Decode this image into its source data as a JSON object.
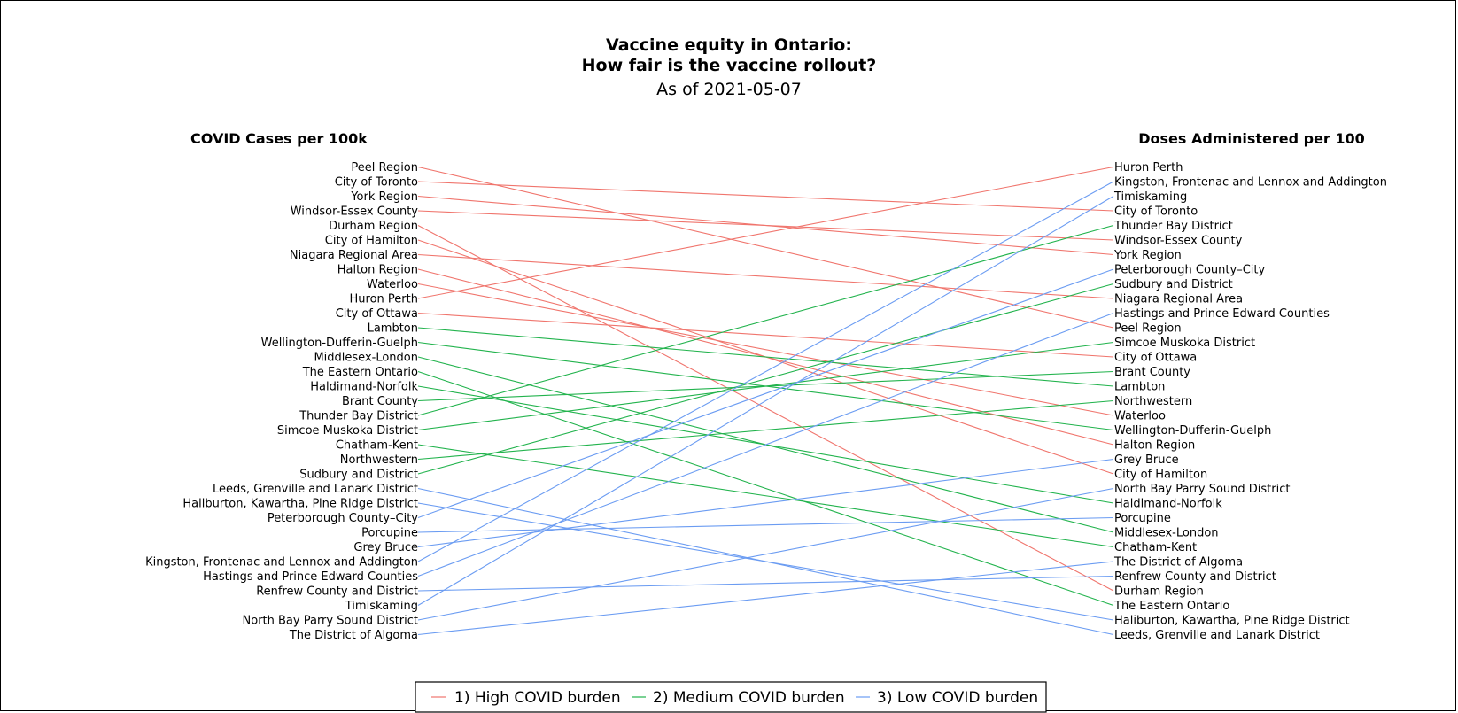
{
  "chart_data": {
    "type": "slopegraph",
    "title_line1": "Vaccine equity in Ontario:",
    "title_line2": "How fair is the vaccine rollout?",
    "subtitle": "As of 2021-05-07",
    "left_header": "COVID Cases per 100k",
    "right_header": "Doses Administered per 100",
    "colors": {
      "High": "#f0756d",
      "Medium": "#22b34d",
      "Low": "#6b9cf2"
    },
    "legend": [
      {
        "key": "High",
        "label": "1) High COVID burden"
      },
      {
        "key": "Medium",
        "label": "2) Medium COVID burden"
      },
      {
        "key": "Low",
        "label": "3) Low COVID burden"
      }
    ],
    "left_order": [
      "Peel Region",
      "City of Toronto",
      "York Region",
      "Windsor-Essex County",
      "Durham Region",
      "City of Hamilton",
      "Niagara Regional Area",
      "Halton Region",
      "Waterloo",
      "Huron Perth",
      "City of Ottawa",
      "Lambton",
      "Wellington-Dufferin-Guelph",
      "Middlesex-London",
      "The Eastern Ontario",
      "Haldimand-Norfolk",
      "Brant County",
      "Thunder Bay District",
      "Simcoe Muskoka District",
      "Chatham-Kent",
      "Northwestern",
      "Sudbury and District",
      "Leeds, Grenville and Lanark District",
      "Haliburton, Kawartha, Pine Ridge District",
      "Peterborough County–City",
      "Porcupine",
      "Grey Bruce",
      "Kingston, Frontenac and Lennox and Addington",
      "Hastings and Prince Edward Counties",
      "Renfrew County and District",
      "Timiskaming",
      "North Bay Parry Sound District",
      "The District of Algoma"
    ],
    "right_order": [
      "Huron Perth",
      "Kingston, Frontenac and Lennox and Addington",
      "Timiskaming",
      "City of Toronto",
      "Thunder Bay District",
      "Windsor-Essex County",
      "York Region",
      "Peterborough County–City",
      "Sudbury and District",
      "Niagara Regional Area",
      "Hastings and Prince Edward Counties",
      "Peel Region",
      "Simcoe Muskoka District",
      "City of Ottawa",
      "Brant County",
      "Lambton",
      "Northwestern",
      "Waterloo",
      "Wellington-Dufferin-Guelph",
      "Halton Region",
      "Grey Bruce",
      "City of Hamilton",
      "North Bay Parry Sound District",
      "Haldimand-Norfolk",
      "Porcupine",
      "Middlesex-London",
      "Chatham-Kent",
      "The District of Algoma",
      "Renfrew County and District",
      "Durham Region",
      "The Eastern Ontario",
      "Haliburton, Kawartha, Pine Ridge District",
      "Leeds, Grenville and Lanark District"
    ],
    "burden": {
      "Peel Region": "High",
      "City of Toronto": "High",
      "York Region": "High",
      "Windsor-Essex County": "High",
      "Durham Region": "High",
      "City of Hamilton": "High",
      "Niagara Regional Area": "High",
      "Halton Region": "High",
      "Waterloo": "High",
      "Huron Perth": "High",
      "City of Ottawa": "High",
      "Lambton": "Medium",
      "Wellington-Dufferin-Guelph": "Medium",
      "Middlesex-London": "Medium",
      "The Eastern Ontario": "Medium",
      "Haldimand-Norfolk": "Medium",
      "Brant County": "Medium",
      "Thunder Bay District": "Medium",
      "Simcoe Muskoka District": "Medium",
      "Chatham-Kent": "Medium",
      "Northwestern": "Medium",
      "Sudbury and District": "Medium",
      "Leeds, Grenville and Lanark District": "Low",
      "Haliburton, Kawartha, Pine Ridge District": "Low",
      "Peterborough County–City": "Low",
      "Porcupine": "Low",
      "Grey Bruce": "Low",
      "Kingston, Frontenac and Lennox and Addington": "Low",
      "Hastings and Prince Edward Counties": "Low",
      "Renfrew County and District": "Low",
      "Timiskaming": "Low",
      "North Bay Parry Sound District": "Low",
      "The District of Algoma": "Low"
    }
  }
}
